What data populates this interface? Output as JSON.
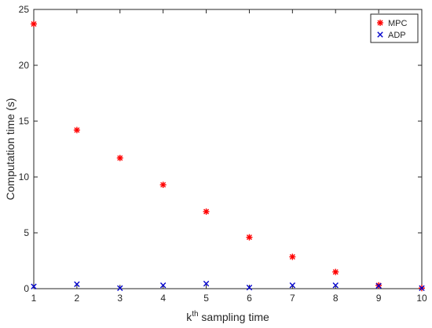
{
  "chart_data": {
    "type": "scatter",
    "xlabel_base": "k",
    "xlabel_sup": "th",
    "xlabel_rest": " sampling time",
    "ylabel": "Computation time (s)",
    "xlim": [
      1,
      10
    ],
    "ylim": [
      0,
      25
    ],
    "xticks": [
      1,
      2,
      3,
      4,
      5,
      6,
      7,
      8,
      9,
      10
    ],
    "yticks": [
      0,
      5,
      10,
      15,
      20,
      25
    ],
    "grid": false,
    "legend_position": "top-right",
    "x": [
      1,
      2,
      3,
      4,
      5,
      6,
      7,
      8,
      9,
      10
    ],
    "series": [
      {
        "name": "MPC",
        "marker": "asterisk",
        "color": "#ff0000",
        "values": [
          23.7,
          14.2,
          11.7,
          9.3,
          6.9,
          4.6,
          2.85,
          1.5,
          0.3,
          0.05
        ]
      },
      {
        "name": "ADP",
        "marker": "x",
        "color": "#0000cc",
        "values": [
          0.2,
          0.4,
          0.05,
          0.3,
          0.45,
          0.1,
          0.3,
          0.3,
          0.25,
          0.05
        ]
      }
    ]
  }
}
